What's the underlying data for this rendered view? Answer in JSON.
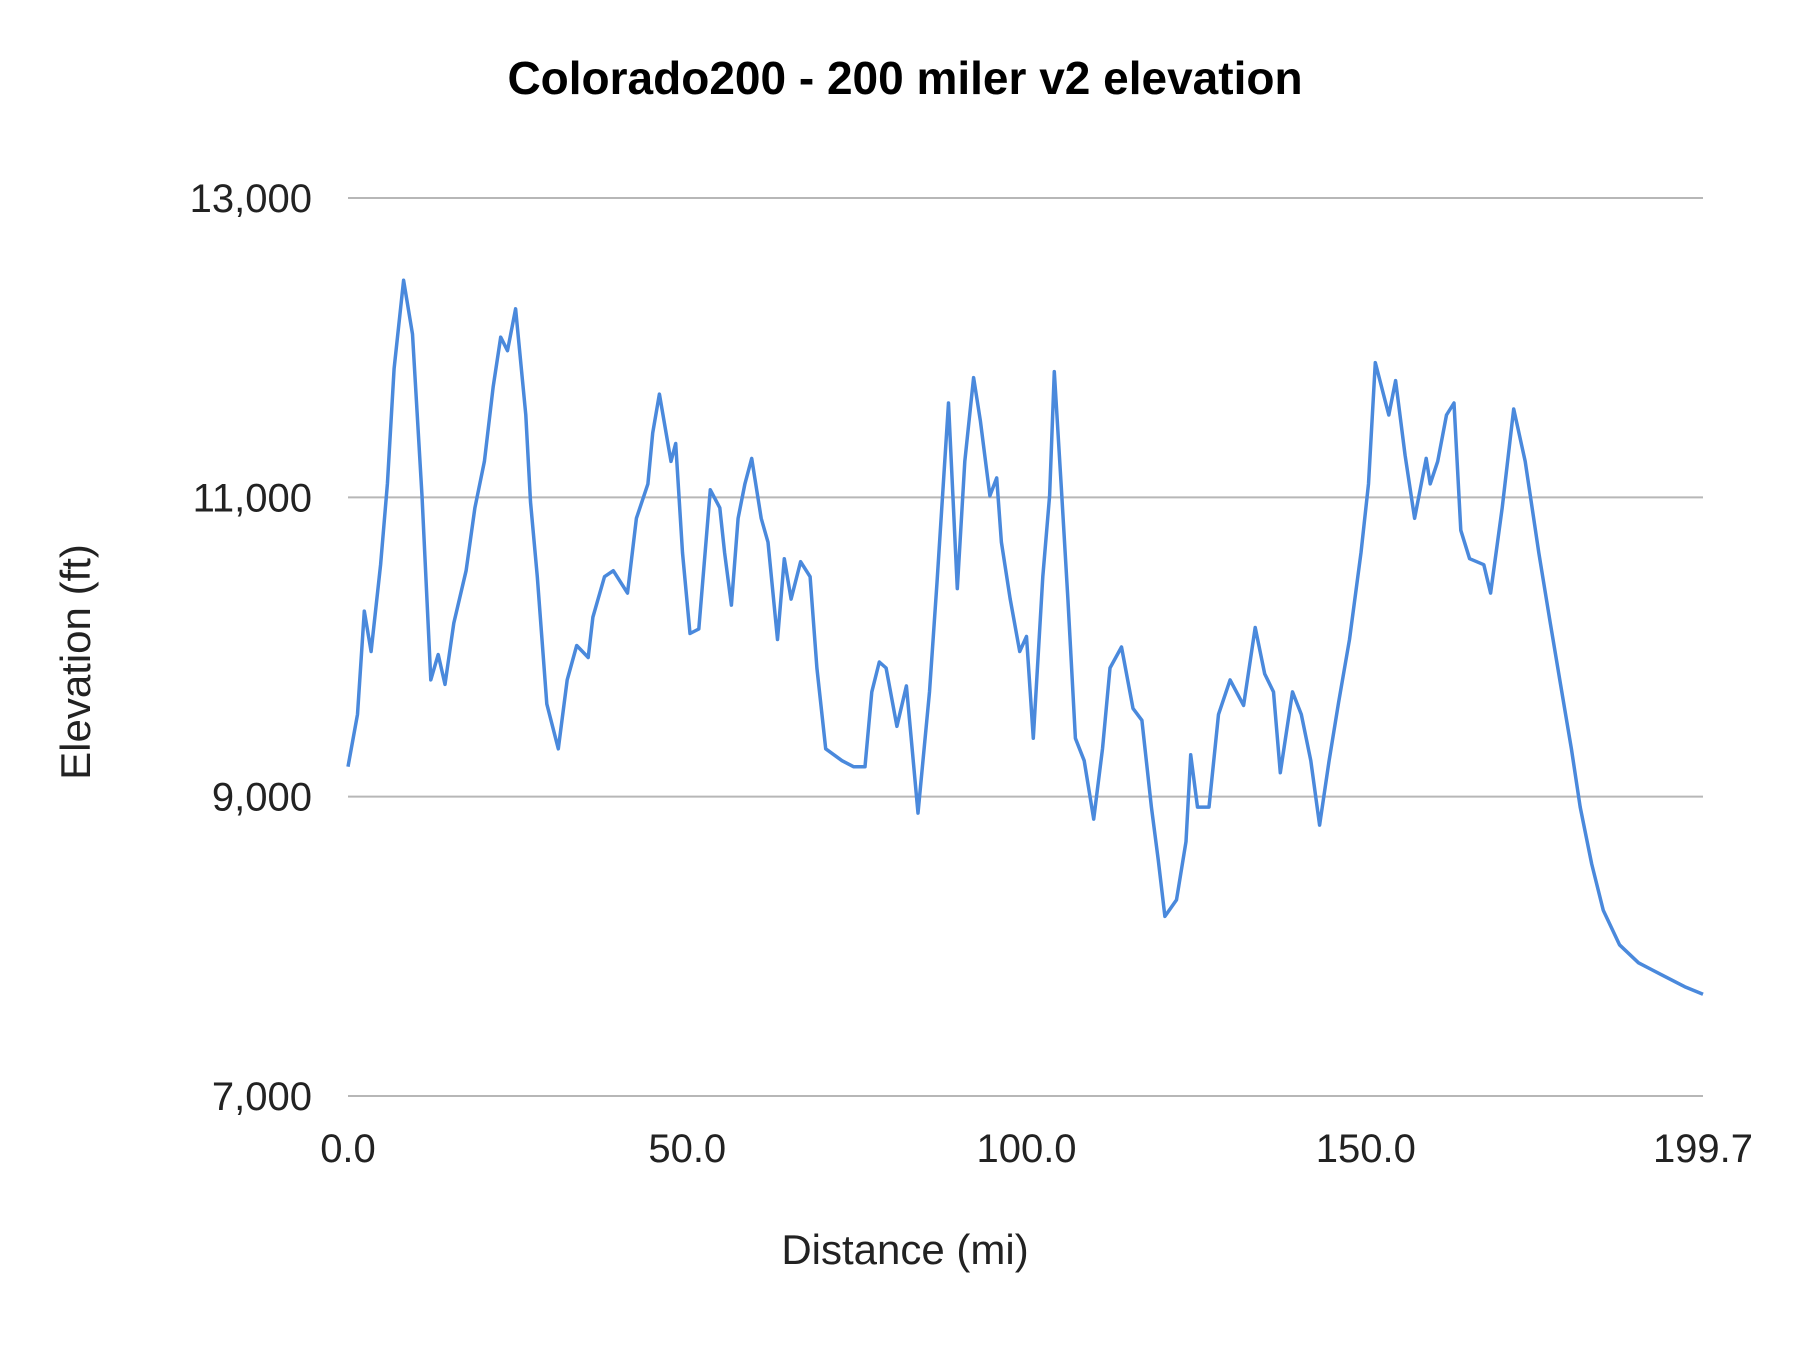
{
  "chart_data": {
    "type": "line",
    "title": "Colorado200 - 200 miler v2 elevation",
    "xlabel": "Distance (mi)",
    "ylabel": "Elevation (ft)",
    "xlim": [
      0,
      199.7
    ],
    "ylim": [
      7000,
      13000
    ],
    "x_ticks": [
      "0.0",
      "50.0",
      "100.0",
      "150.0",
      "199.7"
    ],
    "x_tick_values": [
      0,
      50,
      100,
      150,
      199.7
    ],
    "y_ticks": [
      "13,000",
      "11,000",
      "9,000",
      "7,000"
    ],
    "y_tick_values": [
      13000,
      11000,
      9000,
      7000
    ],
    "grid": "horizontal",
    "legend": "none",
    "line_color": "#4a89dc",
    "grid_color": "#b7b7b7",
    "x": [
      0,
      1.4,
      2.4,
      3.4,
      4.8,
      5.8,
      6.8,
      8.2,
      9.5,
      10.9,
      12.2,
      13.3,
      14.3,
      15.6,
      17.4,
      18.7,
      20.1,
      21.4,
      22.5,
      23.5,
      24.7,
      26.2,
      26.9,
      27.9,
      29.3,
      31.0,
      32.3,
      33.7,
      35.4,
      36.1,
      37.8,
      39.1,
      41.2,
      42.5,
      44.2,
      44.9,
      45.9,
      47.6,
      48.3,
      49.3,
      50.4,
      51.7,
      53.4,
      54.8,
      55.5,
      56.5,
      57.5,
      58.5,
      59.5,
      60.9,
      61.9,
      63.3,
      64.3,
      65.3,
      66.7,
      68.1,
      69.1,
      70.4,
      72.8,
      74.5,
      76.2,
      77.2,
      78.3,
      79.3,
      80.9,
      82.3,
      83.0,
      84.0,
      85.7,
      86.8,
      88.5,
      89.8,
      90.9,
      92.2,
      93.2,
      94.6,
      95.6,
      96.3,
      97.6,
      99.0,
      100.0,
      101.0,
      102.4,
      103.4,
      104.1,
      105.1,
      106.1,
      107.2,
      108.5,
      109.9,
      111.2,
      112.3,
      114.0,
      115.7,
      117.0,
      118.4,
      119.4,
      120.4,
      122.1,
      123.5,
      124.2,
      125.2,
      126.9,
      128.3,
      130.0,
      132.0,
      133.7,
      135.1,
      136.4,
      137.4,
      139.2,
      140.5,
      141.9,
      143.2,
      144.6,
      146.0,
      147.6,
      149.3,
      150.4,
      151.4,
      153.4,
      154.4,
      155.8,
      157.2,
      158.9,
      159.5,
      160.6,
      161.9,
      163.0,
      164.0,
      165.3,
      167.4,
      168.4,
      170.1,
      171.8,
      173.5,
      175.5,
      177.2,
      178.6,
      180.3,
      181.6,
      183.3,
      185.0,
      187.4,
      190.2,
      193.6,
      197.0,
      199.7
    ],
    "y": [
      9200,
      9550,
      10240,
      9970,
      10550,
      11090,
      11860,
      12450,
      12090,
      11010,
      9780,
      9950,
      9750,
      10160,
      10510,
      10930,
      11240,
      11740,
      12070,
      11980,
      12260,
      11550,
      10970,
      10470,
      9620,
      9320,
      9780,
      10010,
      9930,
      10200,
      10470,
      10510,
      10360,
      10860,
      11090,
      11430,
      11690,
      11240,
      11360,
      10630,
      10090,
      10120,
      11050,
      10930,
      10630,
      10280,
      10860,
      11090,
      11260,
      10860,
      10700,
      10050,
      10590,
      10320,
      10570,
      10470,
      9860,
      9320,
      9240,
      9200,
      9200,
      9700,
      9900,
      9860,
      9470,
      9740,
      9390,
      8890,
      9700,
      10430,
      11630,
      10390,
      11240,
      11800,
      11510,
      11010,
      11130,
      10700,
      10320,
      9970,
      10070,
      9390,
      10470,
      11010,
      11840,
      11090,
      10320,
      9390,
      9240,
      8850,
      9320,
      9860,
      10000,
      9590,
      9510,
      8930,
      8580,
      8200,
      8310,
      8700,
      9280,
      8930,
      8930,
      9550,
      9780,
      9610,
      10130,
      9820,
      9700,
      9160,
      9700,
      9550,
      9240,
      8810,
      9240,
      9630,
      10050,
      10630,
      11090,
      11900,
      11550,
      11780,
      11280,
      10860,
      11260,
      11090,
      11240,
      11550,
      11630,
      10780,
      10590,
      10550,
      10360,
      10930,
      11590,
      11240,
      10630,
      10160,
      9780,
      9320,
      8930,
      8550,
      8240,
      8010,
      7890,
      7810,
      7730,
      7680
    ]
  }
}
